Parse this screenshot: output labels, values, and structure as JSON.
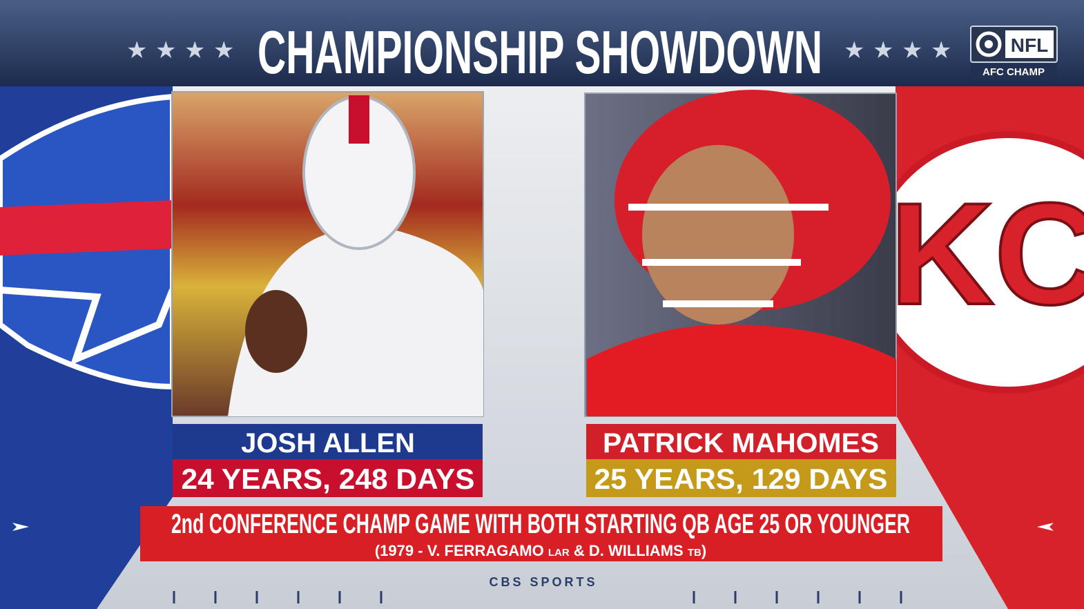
{
  "header": {
    "title": "CHAMPIONSHIP SHOWDOWN",
    "network_badge": "NFL",
    "event": "AFC CHAMP"
  },
  "players": [
    {
      "name": "JOSH ALLEN",
      "age": "24 YEARS, 248 DAYS"
    },
    {
      "name": "PATRICK MAHOMES",
      "age": "25 YEARS, 129 DAYS"
    }
  ],
  "logo_text": "KC",
  "banner": {
    "headline": "2nd CONFERENCE CHAMP GAME WITH BOTH STARTING QB AGE 25 OR YOUNGER",
    "footnote": {
      "text_1": "(1979 - V. FERRAGAMO",
      "team_1": "LAR",
      "text_2": "& D. WILLIAMS",
      "team_2": "TB",
      "text_3": ")"
    }
  },
  "footer": {
    "brand": "CBS SPORTS"
  }
}
